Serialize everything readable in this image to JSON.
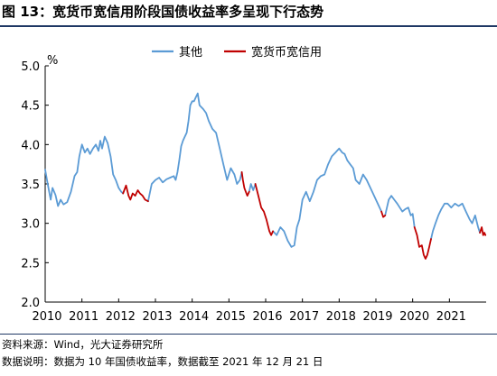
{
  "title": "图 13：宽货币宽信用阶段国债收益率多呈现下行态势",
  "source_note": "资料来源：Wind，光大证券研究所",
  "data_note": "数据说明：数据为 10 年国债收益率，数据截至 2021 年 12 月 21 日",
  "colors": {
    "other": "#5b9bd5",
    "easing": "#c00000",
    "title_rule": "#1f3864"
  },
  "chart_data": {
    "type": "line",
    "title": "图 13：宽货币宽信用阶段国债收益率多呈现下行态势",
    "ylabel": "%",
    "xlabel": "",
    "ylim": [
      2.0,
      5.0
    ],
    "xlim": [
      2010.0,
      2022.0
    ],
    "y_ticks": [
      "2.0",
      "2.5",
      "3.0",
      "3.5",
      "4.0",
      "4.5",
      "5.0"
    ],
    "x_ticks": [
      "2010",
      "2011",
      "2012",
      "2013",
      "2014",
      "2015",
      "2016",
      "2017",
      "2018",
      "2019",
      "2020",
      "2021"
    ],
    "grid": false,
    "legend": {
      "placement": "top-center",
      "entries": [
        "其他",
        "宽货币宽信用"
      ]
    },
    "series": [
      {
        "name": "其他",
        "color": "#5b9bd5",
        "x": [
          2010.0,
          2010.05,
          2010.1,
          2010.15,
          2010.2,
          2010.28,
          2010.35,
          2010.42,
          2010.5,
          2010.6,
          2010.7,
          2010.8,
          2010.87,
          2010.93,
          2011.0,
          2011.08,
          2011.15,
          2011.22,
          2011.3,
          2011.38,
          2011.45,
          2011.5,
          2011.55,
          2011.62,
          2011.7,
          2011.78,
          2011.85,
          2011.92,
          2012.0,
          2012.07,
          2012.12,
          null,
          2012.8,
          2012.9,
          2013.0,
          2013.1,
          2013.2,
          2013.3,
          2013.4,
          2013.5,
          null,
          2013.5,
          2013.55,
          2013.6,
          2013.65,
          2013.7,
          2013.75,
          2013.8,
          2013.85,
          2013.9,
          2013.95,
          2014.0,
          2014.05,
          2014.1,
          2014.15,
          2014.2,
          2014.3,
          2014.38,
          2014.45,
          2014.55,
          2014.65,
          2014.75,
          2014.85,
          2014.95,
          2015.05,
          2015.15,
          2015.22,
          2015.3,
          2015.35,
          null,
          2015.55,
          2015.6,
          2015.66,
          2015.72,
          null,
          2016.2,
          2016.3,
          2016.4,
          2016.5,
          2016.6,
          2016.7,
          2016.78,
          2016.85,
          2016.92,
          2017.0,
          2017.05,
          2017.1,
          2017.2,
          2017.3,
          2017.4,
          2017.5,
          2017.6,
          2017.7,
          2017.8,
          2017.9,
          2018.0,
          2018.08,
          2018.15,
          2018.22,
          2018.3,
          2018.38,
          2018.45,
          2018.55,
          2018.65,
          2018.75,
          2018.85,
          2018.95,
          2019.05,
          2019.15,
          null,
          2019.25,
          2019.3,
          2019.35,
          2019.42,
          2019.5,
          2019.58,
          2019.65,
          2019.72,
          2019.8,
          2019.88,
          2019.95,
          2020.0,
          2020.05,
          null,
          2020.5,
          2020.55,
          2020.62,
          2020.7,
          2020.78,
          2020.87,
          2020.95,
          2021.05,
          2021.15,
          2021.25,
          2021.35,
          2021.45,
          2021.55,
          2021.62,
          2021.7,
          2021.78,
          2021.83,
          null
        ],
        "values": [
          3.68,
          3.55,
          3.42,
          3.3,
          3.45,
          3.36,
          3.22,
          3.3,
          3.24,
          3.27,
          3.4,
          3.6,
          3.65,
          3.85,
          4.0,
          3.9,
          3.95,
          3.88,
          3.95,
          4.0,
          3.92,
          4.05,
          3.95,
          4.1,
          4.02,
          3.85,
          3.62,
          3.55,
          3.45,
          3.4,
          3.38,
          null,
          3.28,
          3.5,
          3.55,
          3.58,
          3.52,
          3.56,
          3.58,
          3.6,
          null,
          3.6,
          3.55,
          3.65,
          3.8,
          3.98,
          4.05,
          4.1,
          4.15,
          4.3,
          4.5,
          4.55,
          4.55,
          4.6,
          4.65,
          4.5,
          4.45,
          4.4,
          4.3,
          4.2,
          4.15,
          3.95,
          3.75,
          3.55,
          3.7,
          3.62,
          3.5,
          3.55,
          3.65,
          null,
          3.4,
          3.5,
          3.42,
          3.5,
          null,
          2.9,
          2.85,
          2.95,
          2.9,
          2.78,
          2.7,
          2.72,
          2.95,
          3.05,
          3.3,
          3.35,
          3.4,
          3.28,
          3.4,
          3.55,
          3.6,
          3.62,
          3.75,
          3.85,
          3.9,
          3.95,
          3.9,
          3.88,
          3.8,
          3.75,
          3.7,
          3.55,
          3.5,
          3.62,
          3.55,
          3.45,
          3.35,
          3.25,
          3.15,
          null,
          3.1,
          3.2,
          3.3,
          3.35,
          3.3,
          3.25,
          3.2,
          3.15,
          3.18,
          3.2,
          3.1,
          3.12,
          2.95,
          null,
          2.8,
          2.9,
          3.0,
          3.1,
          3.18,
          3.25,
          3.25,
          3.2,
          3.25,
          3.22,
          3.25,
          3.15,
          3.05,
          3.0,
          3.1,
          2.95,
          2.88,
          null
        ]
      },
      {
        "name": "宽货币宽信用",
        "color": "#c00000",
        "x": [
          2012.12,
          2012.2,
          2012.27,
          2012.32,
          2012.38,
          2012.45,
          2012.52,
          2012.58,
          2012.65,
          2012.72,
          2012.8,
          null,
          2015.35,
          2015.38,
          2015.42,
          2015.46,
          2015.5,
          2015.55,
          null,
          2015.72,
          2015.8,
          2015.88,
          2015.95,
          2016.02,
          2016.1,
          2016.15,
          2016.2,
          null,
          2019.15,
          2019.2,
          2019.25,
          null,
          2020.05,
          2020.12,
          2020.18,
          2020.25,
          2020.3,
          2020.35,
          2020.4,
          2020.45,
          2020.5,
          null,
          2021.83,
          2021.88,
          2021.92,
          2021.95,
          2021.98
        ],
        "values": [
          3.38,
          3.48,
          3.35,
          3.3,
          3.38,
          3.35,
          3.42,
          3.38,
          3.35,
          3.3,
          3.28,
          null,
          3.65,
          3.55,
          3.45,
          3.4,
          3.35,
          3.4,
          null,
          3.5,
          3.35,
          3.2,
          3.15,
          3.05,
          2.9,
          2.85,
          2.9,
          null,
          3.15,
          3.08,
          3.1,
          null,
          2.95,
          2.85,
          2.7,
          2.72,
          2.6,
          2.55,
          2.6,
          2.7,
          2.8,
          null,
          2.88,
          2.95,
          2.85,
          2.88,
          2.85
        ]
      }
    ]
  }
}
